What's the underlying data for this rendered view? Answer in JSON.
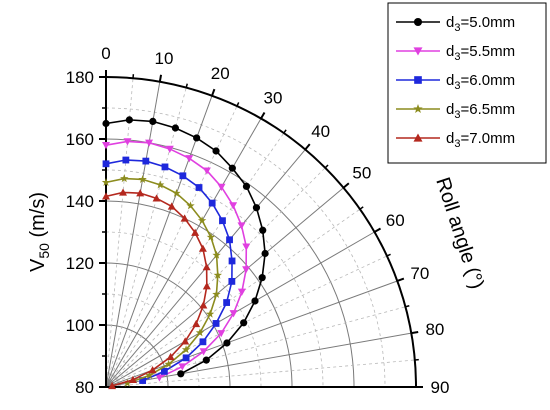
{
  "chart_data": {
    "type": "polar-line",
    "angle_axis": {
      "label": "Roll angle (°)",
      "range": [
        0,
        90
      ],
      "ticks": [
        0,
        10,
        20,
        30,
        40,
        50,
        60,
        70,
        80,
        90
      ]
    },
    "radial_axis": {
      "label_main": "V",
      "label_sub": "50",
      "label_unit": " (m/s)",
      "range": [
        80,
        180
      ],
      "ticks": [
        80,
        100,
        120,
        140,
        160,
        180
      ]
    },
    "grid": true,
    "legend": {
      "placement": "top-right"
    },
    "series": [
      {
        "name": "d3=5.0mm",
        "name_main": "d",
        "name_sub": "3",
        "name_rest": "=5.0mm",
        "color": "#000000",
        "marker": "circle",
        "angles": [
          0,
          5,
          10,
          15,
          20,
          25,
          30,
          35,
          40,
          45,
          50,
          55,
          60,
          65,
          70,
          75,
          80
        ],
        "values": [
          165.0,
          166.5,
          167.0,
          166.5,
          165.5,
          164.0,
          161.5,
          159.0,
          155.5,
          151.5,
          147.0,
          141.5,
          135.5,
          129.0,
          121.5,
          113.5,
          104.5
        ]
      },
      {
        "name": "d3=5.5mm",
        "name_main": "d",
        "name_sub": "3",
        "name_rest": "=5.5mm",
        "color": "#E040E0",
        "marker": "triangle-down",
        "angles": [
          0,
          5,
          10,
          15,
          20,
          25,
          30,
          35,
          40,
          45,
          50,
          55,
          60,
          65,
          70,
          75,
          80
        ],
        "values": [
          158.0,
          159.5,
          160.0,
          159.5,
          158.5,
          157.0,
          154.5,
          151.5,
          148.0,
          144.0,
          139.0,
          133.5,
          127.5,
          121.0,
          113.5,
          105.5,
          97.5
        ]
      },
      {
        "name": "d3=6.0mm",
        "name_main": "d",
        "name_sub": "3",
        "name_rest": "=6.0mm",
        "color": "#1E28DC",
        "marker": "square",
        "angles": [
          0,
          5,
          10,
          15,
          20,
          25,
          30,
          35,
          40,
          45,
          50,
          55,
          60,
          65,
          70,
          75,
          80
        ],
        "values": [
          152.0,
          153.5,
          154.0,
          153.5,
          152.5,
          151.0,
          148.5,
          145.5,
          142.0,
          137.5,
          133.0,
          127.5,
          121.0,
          114.5,
          107.5,
          99.5,
          92.0
        ]
      },
      {
        "name": "d3=6.5mm",
        "name_main": "d",
        "name_sub": "3",
        "name_rest": "=6.5mm",
        "color": "#8C8C1E",
        "marker": "star",
        "angles": [
          0,
          5,
          10,
          15,
          20,
          25,
          30,
          35,
          40,
          45,
          50,
          55,
          60,
          65,
          70,
          75,
          80
        ],
        "values": [
          146.0,
          147.5,
          148.0,
          147.5,
          146.5,
          144.5,
          142.0,
          139.0,
          135.5,
          131.0,
          126.5,
          121.0,
          115.0,
          108.5,
          101.5,
          94.5,
          87.0
        ]
      },
      {
        "name": "d3=7.0mm",
        "name_main": "d",
        "name_sub": "3",
        "name_rest": "=7.0mm",
        "color": "#B4281E",
        "marker": "triangle-up",
        "angles": [
          0,
          5,
          10,
          15,
          20,
          25,
          30,
          35,
          40,
          45,
          50,
          55,
          60,
          65,
          70,
          75,
          80
        ],
        "values": [
          141.5,
          143.0,
          143.5,
          143.0,
          142.0,
          140.0,
          137.5,
          134.5,
          130.5,
          126.0,
          121.0,
          115.5,
          109.5,
          103.0,
          96.0,
          89.0,
          82.0
        ]
      }
    ]
  }
}
